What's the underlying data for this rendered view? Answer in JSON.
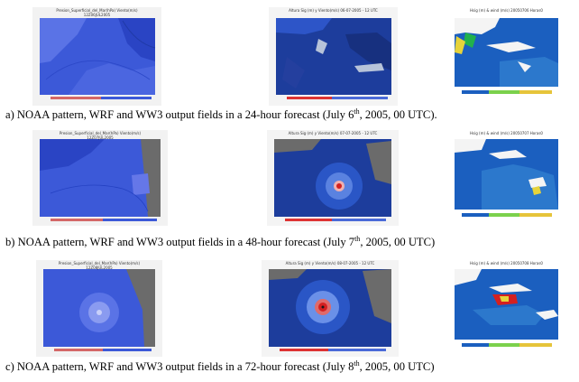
{
  "rows": [
    {
      "caption": {
        "prefix": "a)   NOAA pattern, WRF and  WW3 output fields  in a 24-hour forecast (July 6",
        "sup": "th",
        "suffix": ", 2005, 00 UTC)."
      },
      "titles": {
        "noaa": "Presion_Superficial_del_Mar(hPa) Viento(m/s)",
        "noaa_sub": "12Z06JUL2005",
        "wrf": "Altura Sig (m) y Viento(m/s) 06-07-2005 - 12 UTC",
        "ww3": "Hsig (m) & wind (m/s) 20050706 Horas0"
      }
    },
    {
      "caption": {
        "prefix": "b)   NOAA pattern, WRF and  WW3 output fields in a 48-hour forecast (July 7",
        "sup": "th",
        "suffix": ", 2005, 00 UTC)"
      },
      "titles": {
        "noaa": "Presion_Superficial_del_Mar(hPa) Viento(m/s)",
        "noaa_sub": "12Z07JUL2005",
        "wrf": "Altura Sig (m) y Viento(m/s) 07-07-2005 - 12 UTC",
        "ww3": "Hsig (m) & wind (m/s) 20050707 Horas0"
      }
    },
    {
      "caption": {
        "prefix": "c)   NOAA pattern, WRF and  WW3 output fields in a  72-hour forecast (July 8",
        "sup": "th",
        "suffix": ", 2005, 00 UTC)"
      },
      "titles": {
        "noaa": "Presion_Superficial_del_Mar(hPa) Viento(m/s)",
        "noaa_sub": "12Z08JUL2005",
        "wrf": "Altura Sig (m) y Viento(m/s) 08-07-2005 - 12 UTC",
        "ww3": "Hsig (m) & wind (m/s) 20050708 Horas0"
      }
    }
  ],
  "colors": {
    "noaa_bg": "#3c59d8",
    "noaa_land": "#6b6b6b",
    "wrf_bg": "#1d3d9c",
    "ww3_bg": "#1b5fbf",
    "ww3_land": "#f4f4f4",
    "storm_core": "#d42020"
  }
}
